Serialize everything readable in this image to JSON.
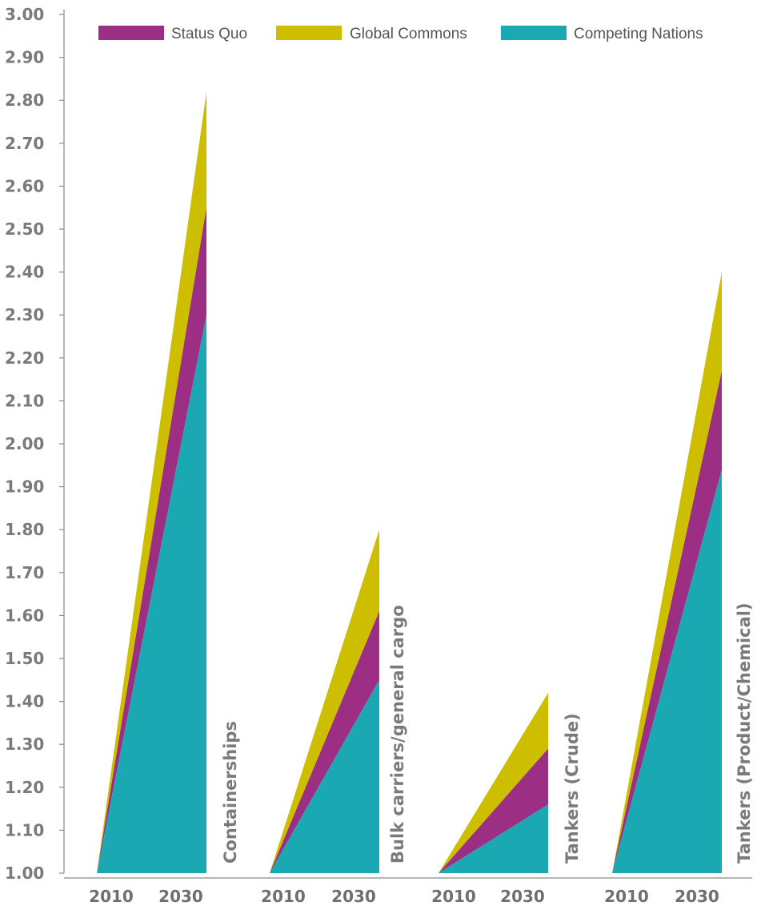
{
  "chart_data": {
    "type": "area",
    "ylim": [
      1.0,
      3.0
    ],
    "y_ticks": [
      "1.00",
      "1.10",
      "1.20",
      "1.30",
      "1.40",
      "1.50",
      "1.60",
      "1.70",
      "1.80",
      "1.90",
      "2.00",
      "2.10",
      "2.20",
      "2.30",
      "2.40",
      "2.50",
      "2.60",
      "2.70",
      "2.80",
      "2.90",
      "3.00"
    ],
    "x_ticks": [
      "2010",
      "2030"
    ],
    "legend_position": "top",
    "grid": false,
    "colors": {
      "Status Quo": "#9c2f83",
      "Global Commons": "#cdbf00",
      "Competing Nations": "#1aa8b3"
    },
    "series_names": [
      "Status Quo",
      "Global Commons",
      "Competing Nations"
    ],
    "categories": [
      {
        "label": "Containerships",
        "values": {
          "2010": {
            "Competing Nations": 1.0,
            "Status Quo": 1.0,
            "Global Commons": 1.0
          },
          "2030": {
            "Competing Nations": 2.3,
            "Status Quo": 2.55,
            "Global Commons": 2.82
          }
        }
      },
      {
        "label": "Bulk carriers/general cargo",
        "values": {
          "2010": {
            "Competing Nations": 1.0,
            "Status Quo": 1.0,
            "Global Commons": 1.0
          },
          "2030": {
            "Competing Nations": 1.45,
            "Status Quo": 1.61,
            "Global Commons": 1.8
          }
        }
      },
      {
        "label": "Tankers (Crude)",
        "values": {
          "2010": {
            "Competing Nations": 1.0,
            "Status Quo": 1.0,
            "Global Commons": 1.0
          },
          "2030": {
            "Competing Nations": 1.16,
            "Status Quo": 1.29,
            "Global Commons": 1.42
          }
        }
      },
      {
        "label": "Tankers (Product/Chemical)",
        "values": {
          "2010": {
            "Competing Nations": 1.0,
            "Status Quo": 1.0,
            "Global Commons": 1.0
          },
          "2030": {
            "Competing Nations": 1.94,
            "Status Quo": 2.17,
            "Global Commons": 2.4
          }
        }
      }
    ]
  }
}
